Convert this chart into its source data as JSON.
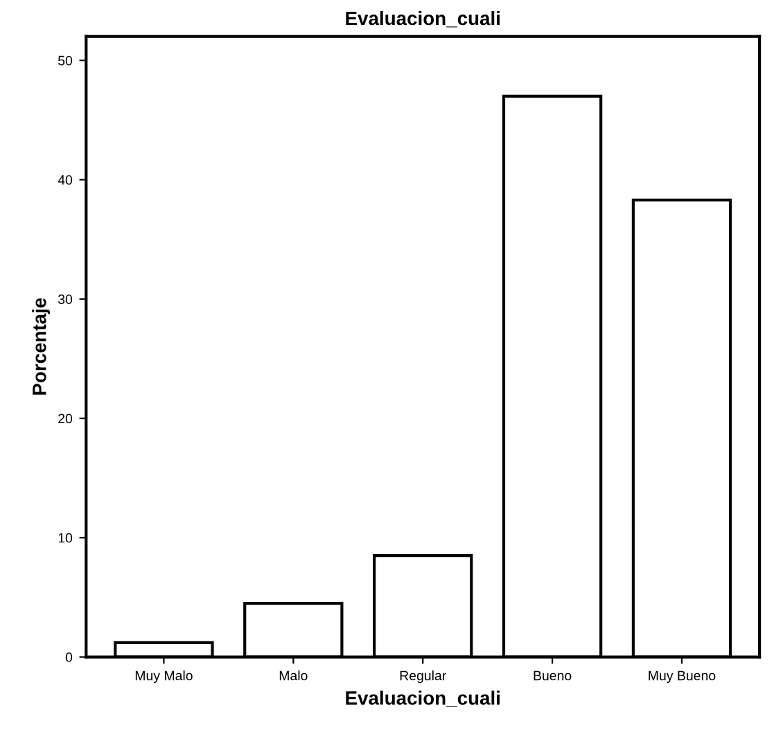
{
  "chart_data": {
    "type": "bar",
    "title": "Evaluacion_cuali",
    "xlabel": "Evaluacion_cuali",
    "ylabel": "Porcentaje",
    "categories": [
      "Muy Malo",
      "Malo",
      "Regular",
      "Bueno",
      "Muy Bueno"
    ],
    "values": [
      1.2,
      4.5,
      8.5,
      47.0,
      38.3
    ],
    "color": "#ffffff",
    "ylim": [
      0,
      52
    ],
    "yticks": [
      0,
      10,
      20,
      30,
      40,
      50
    ],
    "grid": false
  }
}
